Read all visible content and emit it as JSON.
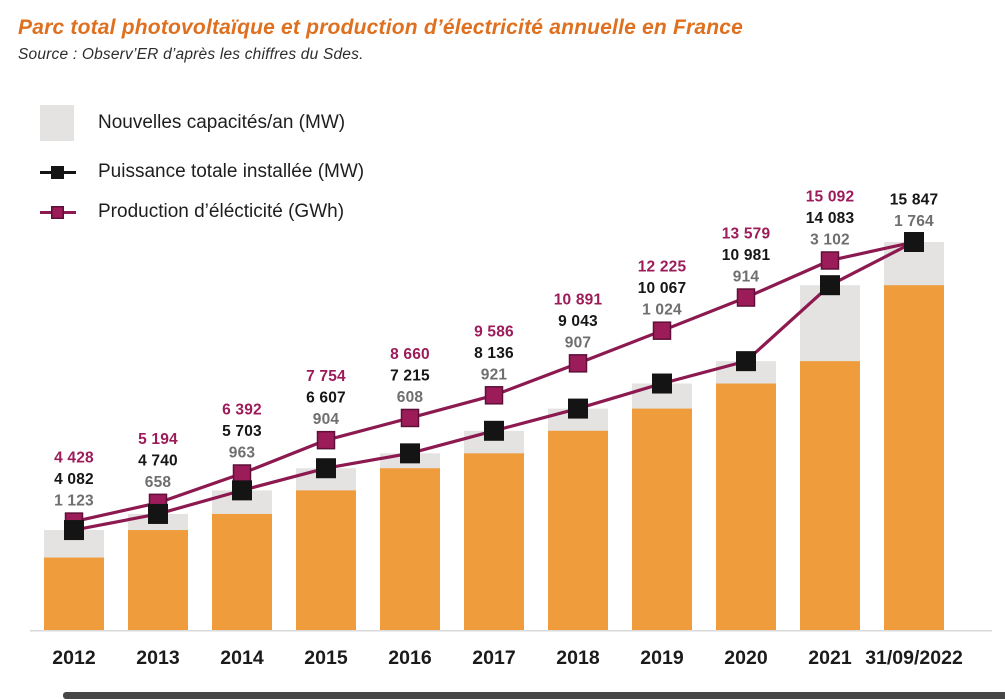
{
  "title": "Parc total photovoltaïque et production d’électricité annuelle en France",
  "source": "Source : Observ’ER d’après les chiffres du Sdes.",
  "legend": {
    "items": [
      {
        "label": "Nouvelles capacités/an (MW)",
        "swatch": "gray-bar"
      },
      {
        "label": "Puissance totale installée (MW)",
        "swatch": "black-line-square"
      },
      {
        "label": "Production d’élécticité (GWh)",
        "swatch": "purple-line-square"
      }
    ]
  },
  "colors": {
    "title_orange": "#de701f",
    "bar_orange": "#ef9c3c",
    "bar_gray": "#e4e3e1",
    "line_maroon": "#8c1a50",
    "marker_black": "#141414",
    "marker_purple": "#9c1c59",
    "marker_purple_border": "#5e1038",
    "label_purple": "#9c1c59",
    "label_black": "#161616",
    "label_gray": "#6f6f6f",
    "axis_line": "#d9d9d9",
    "year_label": "#1b1b1b"
  },
  "chart_data": {
    "type": "bar+line combo (no visible y-axis, common zero baseline)",
    "title": "Parc total photovoltaïque et production d’électricité annuelle en France",
    "categories": [
      "2012",
      "2013",
      "2014",
      "2015",
      "2016",
      "2017",
      "2018",
      "2019",
      "2020",
      "2021",
      "31/09/2022"
    ],
    "series": [
      {
        "name": "Nouvelles capacités/an (MW)",
        "type": "bar-cap-gray",
        "values": [
          1123,
          658,
          963,
          904,
          608,
          921,
          907,
          1024,
          914,
          3102,
          1764
        ],
        "labels": [
          "1 123",
          "658",
          "963",
          "904",
          "608",
          "921",
          "907",
          "1 024",
          "914",
          "3 102",
          "1 764"
        ]
      },
      {
        "name": "Puissance totale installée (MW)",
        "type": "line-black-squares",
        "values": [
          4082,
          4740,
          5703,
          6607,
          7215,
          8136,
          9043,
          10067,
          10981,
          14083,
          15847
        ],
        "labels": [
          "4 082",
          "4 740",
          "5 703",
          "6 607",
          "7 215",
          "8 136",
          "9 043",
          "10 067",
          "10 981",
          "14 083",
          "15 847"
        ]
      },
      {
        "name": "Production d’élécticité (GWh)",
        "type": "line-purple-squares",
        "values": [
          4428,
          5194,
          6392,
          7754,
          8660,
          9586,
          10891,
          12225,
          13579,
          15092,
          null
        ],
        "labels": [
          "4 428",
          "5 194",
          "6 392",
          "7 754",
          "8 660",
          "9 586",
          "10 891",
          "12 225",
          "13 579",
          "15 092",
          null
        ]
      }
    ],
    "ylim": [
      0,
      16500
    ],
    "legend_position": "top-left",
    "grid": false,
    "notes": "Total bar height = puissance totale installée; gray cap = nouvelles capacités de l'année; orange portion = total minus new. Production line converges onto the 2022 total point (no 2022 production label)."
  }
}
